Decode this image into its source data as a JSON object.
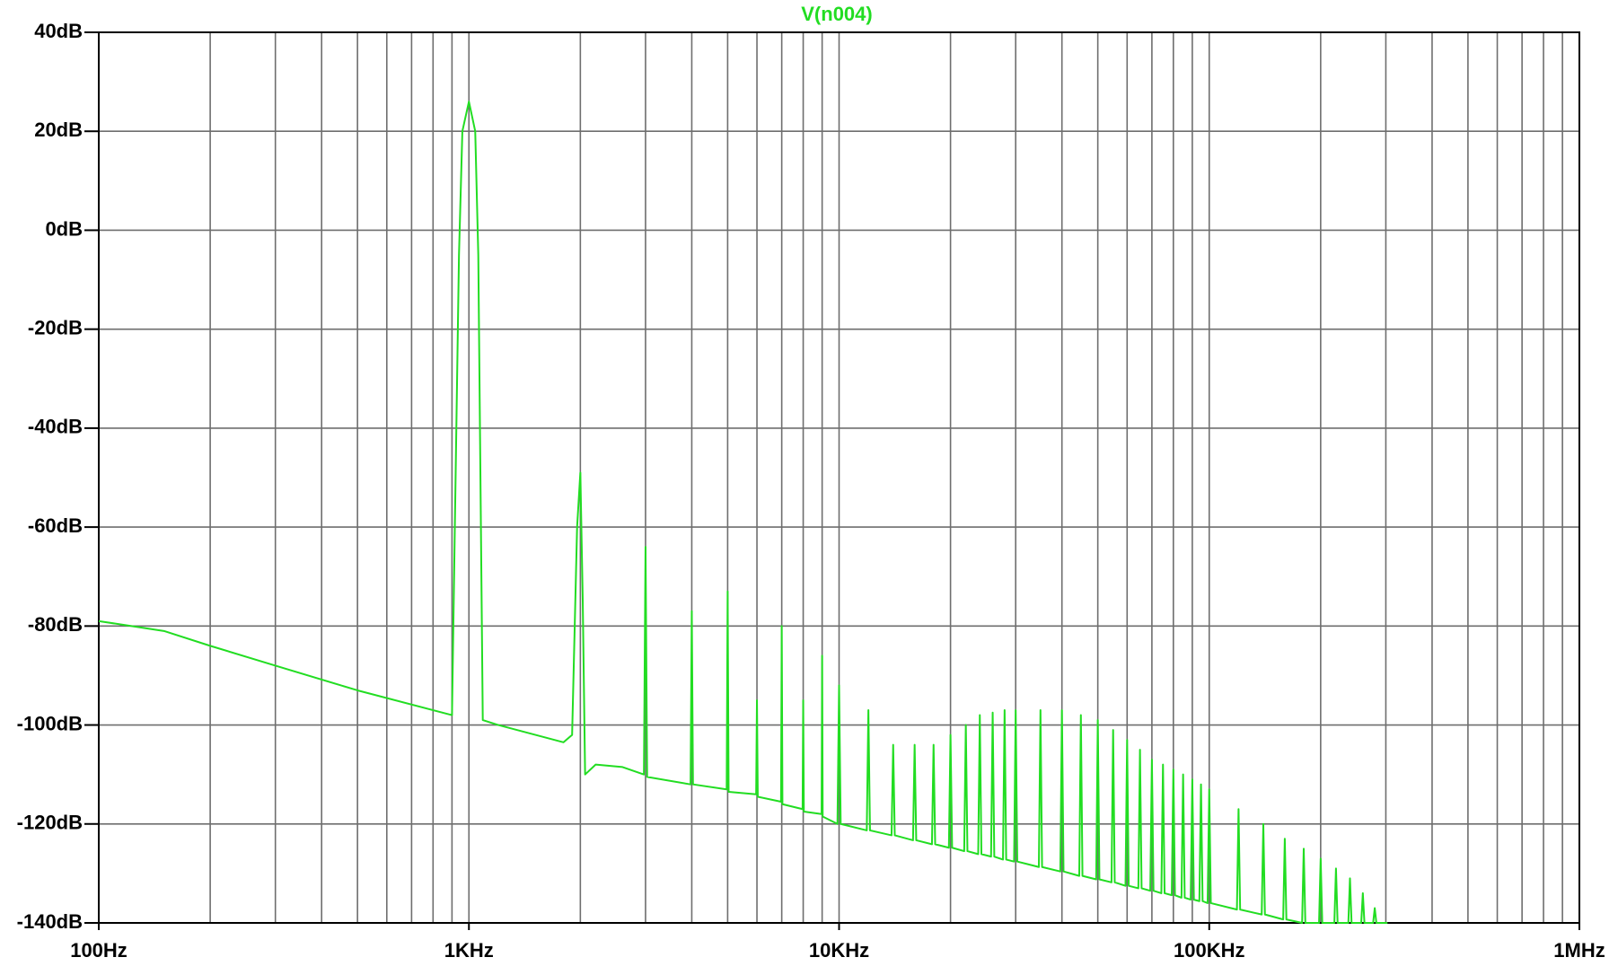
{
  "chart_data": {
    "type": "line",
    "title": "V(n004)",
    "xscale": "log",
    "grid": true,
    "color": "#22dd22",
    "xlim": [
      100,
      1000000
    ],
    "xticks": [
      {
        "value": 100,
        "label": "100Hz"
      },
      {
        "value": 1000,
        "label": "1KHz"
      },
      {
        "value": 10000,
        "label": "10KHz"
      },
      {
        "value": 100000,
        "label": "100KHz"
      },
      {
        "value": 1000000,
        "label": "1MHz"
      }
    ],
    "xminorticks": [
      200,
      300,
      400,
      500,
      600,
      700,
      800,
      900,
      2000,
      3000,
      4000,
      5000,
      6000,
      7000,
      8000,
      9000,
      20000,
      30000,
      40000,
      50000,
      60000,
      70000,
      80000,
      90000,
      200000,
      300000,
      400000,
      500000,
      600000,
      700000,
      800000,
      900000
    ],
    "ylim": [
      -140,
      40
    ],
    "yticks": [
      {
        "value": 40,
        "label": "40dB"
      },
      {
        "value": 20,
        "label": "20dB"
      },
      {
        "value": 0,
        "label": "0dB"
      },
      {
        "value": -20,
        "label": "-20dB"
      },
      {
        "value": -40,
        "label": "-40dB"
      },
      {
        "value": -60,
        "label": "-60dB"
      },
      {
        "value": -80,
        "label": "-80dB"
      },
      {
        "value": -100,
        "label": "-100dB"
      },
      {
        "value": -120,
        "label": "-120dB"
      },
      {
        "value": -140,
        "label": "-140dB"
      }
    ],
    "x": [
      100,
      150,
      200,
      300,
      500,
      900,
      940,
      960,
      1000,
      1040,
      1060,
      1090,
      1200,
      1800,
      1900,
      1960,
      2000,
      2030,
      2060,
      2200,
      2600,
      2970,
      3000,
      3030,
      3970,
      4000,
      4030,
      4970,
      5000,
      5030,
      5970,
      6000,
      6030,
      6970,
      7000,
      7030,
      7970,
      8000,
      8030,
      8970,
      9000,
      9030,
      9900,
      10000,
      10100,
      11880,
      12000,
      12120,
      13860,
      14000,
      14140,
      15840,
      16000,
      16160,
      17820,
      18000,
      18180,
      19800,
      20000,
      20200,
      21780,
      22000,
      22220,
      23760,
      24000,
      24240,
      25740,
      26000,
      26260,
      27720,
      28000,
      28280,
      29700,
      30000,
      30300,
      34650,
      35000,
      35350,
      39600,
      40000,
      40400,
      44550,
      45000,
      45450,
      49500,
      50000,
      50500,
      54450,
      55000,
      55550,
      59400,
      60000,
      60600,
      64350,
      65000,
      65650,
      69300,
      70000,
      70700,
      74250,
      75000,
      75750,
      79200,
      80000,
      80800,
      84150,
      85000,
      85850,
      89100,
      90000,
      90900,
      94050,
      95000,
      95950,
      99000,
      100000,
      101000,
      118800,
      120000,
      121200,
      138600,
      140000,
      141400,
      158400,
      160000,
      161600,
      178200,
      180000,
      181800,
      198000,
      200000,
      202000,
      217800,
      220000,
      222200,
      237600,
      240000,
      242400,
      257400,
      260000,
      262600,
      277200,
      280000,
      282800,
      297000,
      300000,
      303000
    ],
    "values": [
      -79,
      -81,
      -84,
      -88,
      -93,
      -98,
      -5,
      20,
      26,
      20,
      -5,
      -99,
      -100,
      -103.5,
      -102,
      -60,
      -49,
      -75,
      -110,
      -108,
      -108.5,
      -110,
      -64,
      -110.5,
      -112,
      -77,
      -112,
      -113,
      -73,
      -113.5,
      -114,
      -95,
      -114.5,
      -115.5,
      -80,
      -116,
      -117,
      -95,
      -117.5,
      -118,
      -86,
      -118.5,
      -120,
      -92,
      -120,
      -121.3,
      -97,
      -121.3,
      -122.3,
      -104,
      -122.3,
      -123.3,
      -104,
      -123.3,
      -124.1,
      -104,
      -124.1,
      -124.8,
      -102,
      -124.8,
      -125.5,
      -100,
      -125.5,
      -126.1,
      -98,
      -126.1,
      -126.6,
      -97.5,
      -126.6,
      -127.2,
      -97,
      -127.2,
      -127.6,
      -97,
      -127.6,
      -128.7,
      -97,
      -128.7,
      -129.6,
      -97,
      -129.6,
      -130.5,
      -98,
      -130.5,
      -131.2,
      -99,
      -131.2,
      -131.8,
      -101,
      -131.8,
      -132.5,
      -103,
      -132.5,
      -133,
      -105,
      -133,
      -133.5,
      -107,
      -133.5,
      -134,
      -108,
      -134,
      -134.4,
      -109,
      -134.4,
      -134.9,
      -110,
      -134.9,
      -135.3,
      -111,
      -135.3,
      -135.6,
      -112,
      -135.6,
      -136,
      -113,
      -136,
      -137.3,
      -117,
      -137.3,
      -138.3,
      -120,
      -138.3,
      -139.3,
      -123,
      -139.3,
      -140,
      -125,
      -140,
      -140,
      -127,
      -140,
      -140,
      -129,
      -140,
      -140,
      -131,
      -140,
      -140,
      -134,
      -140,
      -140,
      -137,
      -140,
      -140,
      -140,
      -140
    ]
  }
}
